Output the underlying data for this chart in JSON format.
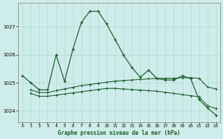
{
  "title": "Graphe pression niveau de la mer (hPa)",
  "background_color": "#ceecea",
  "grid_color": "#aed8d4",
  "line_color": "#1a5c2a",
  "x_ticks": [
    0,
    1,
    2,
    3,
    4,
    5,
    6,
    7,
    8,
    9,
    10,
    11,
    12,
    13,
    14,
    15,
    16,
    17,
    18,
    19,
    20,
    21,
    22,
    23
  ],
  "y_ticks": [
    1024,
    1025,
    1026,
    1027
  ],
  "ylim": [
    1023.6,
    1027.85
  ],
  "xlim": [
    -0.5,
    23.5
  ],
  "series_main": {
    "x": [
      0,
      1,
      2,
      3,
      4,
      5,
      6,
      7,
      8,
      9,
      10,
      11,
      12,
      13,
      14,
      15,
      16,
      17,
      18,
      19,
      20,
      21,
      22,
      23
    ],
    "y": [
      1025.25,
      1025.0,
      1024.75,
      1024.75,
      1026.0,
      1025.05,
      1026.2,
      1027.15,
      1027.55,
      1027.55,
      1027.1,
      1026.55,
      1026.0,
      1025.55,
      1025.2,
      1025.45,
      1025.15,
      1025.1,
      1025.1,
      1025.25,
      1025.15,
      1024.4,
      1024.1,
      1023.85
    ]
  },
  "series_upper": {
    "x": [
      1,
      2,
      3,
      4,
      5,
      6,
      7,
      8,
      9,
      10,
      11,
      12,
      13,
      14,
      15,
      16,
      17,
      18,
      19,
      20,
      21,
      22,
      23
    ],
    "y": [
      1024.75,
      1024.65,
      1024.65,
      1024.72,
      1024.78,
      1024.84,
      1024.9,
      1024.94,
      1024.98,
      1025.02,
      1025.06,
      1025.08,
      1025.1,
      1025.12,
      1025.14,
      1025.16,
      1025.16,
      1025.16,
      1025.18,
      1025.18,
      1025.16,
      1024.85,
      1024.78
    ]
  },
  "series_lower": {
    "x": [
      1,
      2,
      3,
      4,
      5,
      6,
      7,
      8,
      9,
      10,
      11,
      12,
      13,
      14,
      15,
      16,
      17,
      18,
      19,
      20,
      21,
      22,
      23
    ],
    "y": [
      1024.62,
      1024.52,
      1024.52,
      1024.56,
      1024.6,
      1024.64,
      1024.68,
      1024.72,
      1024.76,
      1024.8,
      1024.8,
      1024.78,
      1024.76,
      1024.74,
      1024.72,
      1024.7,
      1024.66,
      1024.62,
      1024.58,
      1024.54,
      1024.5,
      1024.18,
      1024.08
    ]
  }
}
